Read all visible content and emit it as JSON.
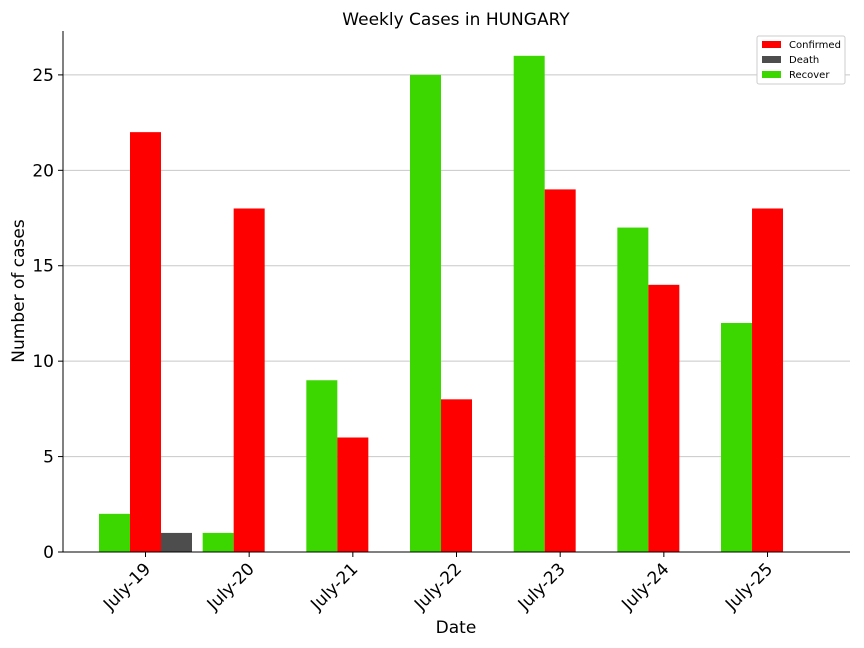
{
  "chart_data": {
    "type": "bar",
    "title": "Weekly Cases in HUNGARY",
    "xlabel": "Date",
    "ylabel": "Number of cases",
    "categories": [
      "July-19",
      "July-20",
      "July-21",
      "July-22",
      "July-23",
      "July-24",
      "July-25"
    ],
    "series": [
      {
        "name": "Recover",
        "color": "#3cd600",
        "values": [
          2,
          1,
          9,
          25,
          26,
          17,
          12
        ]
      },
      {
        "name": "Confirmed",
        "color": "#ff0000",
        "values": [
          22,
          18,
          6,
          8,
          19,
          14,
          18
        ]
      },
      {
        "name": "Death",
        "color": "#4d4d4d",
        "values": [
          1,
          0,
          0,
          0,
          0,
          0,
          0
        ]
      }
    ],
    "legend_order": [
      "Confirmed",
      "Death",
      "Recover"
    ],
    "yticks": [
      0,
      5,
      10,
      15,
      20,
      25
    ],
    "ylim": [
      0,
      27.3
    ],
    "grid": "horizontal",
    "legend_position": "top-right"
  }
}
